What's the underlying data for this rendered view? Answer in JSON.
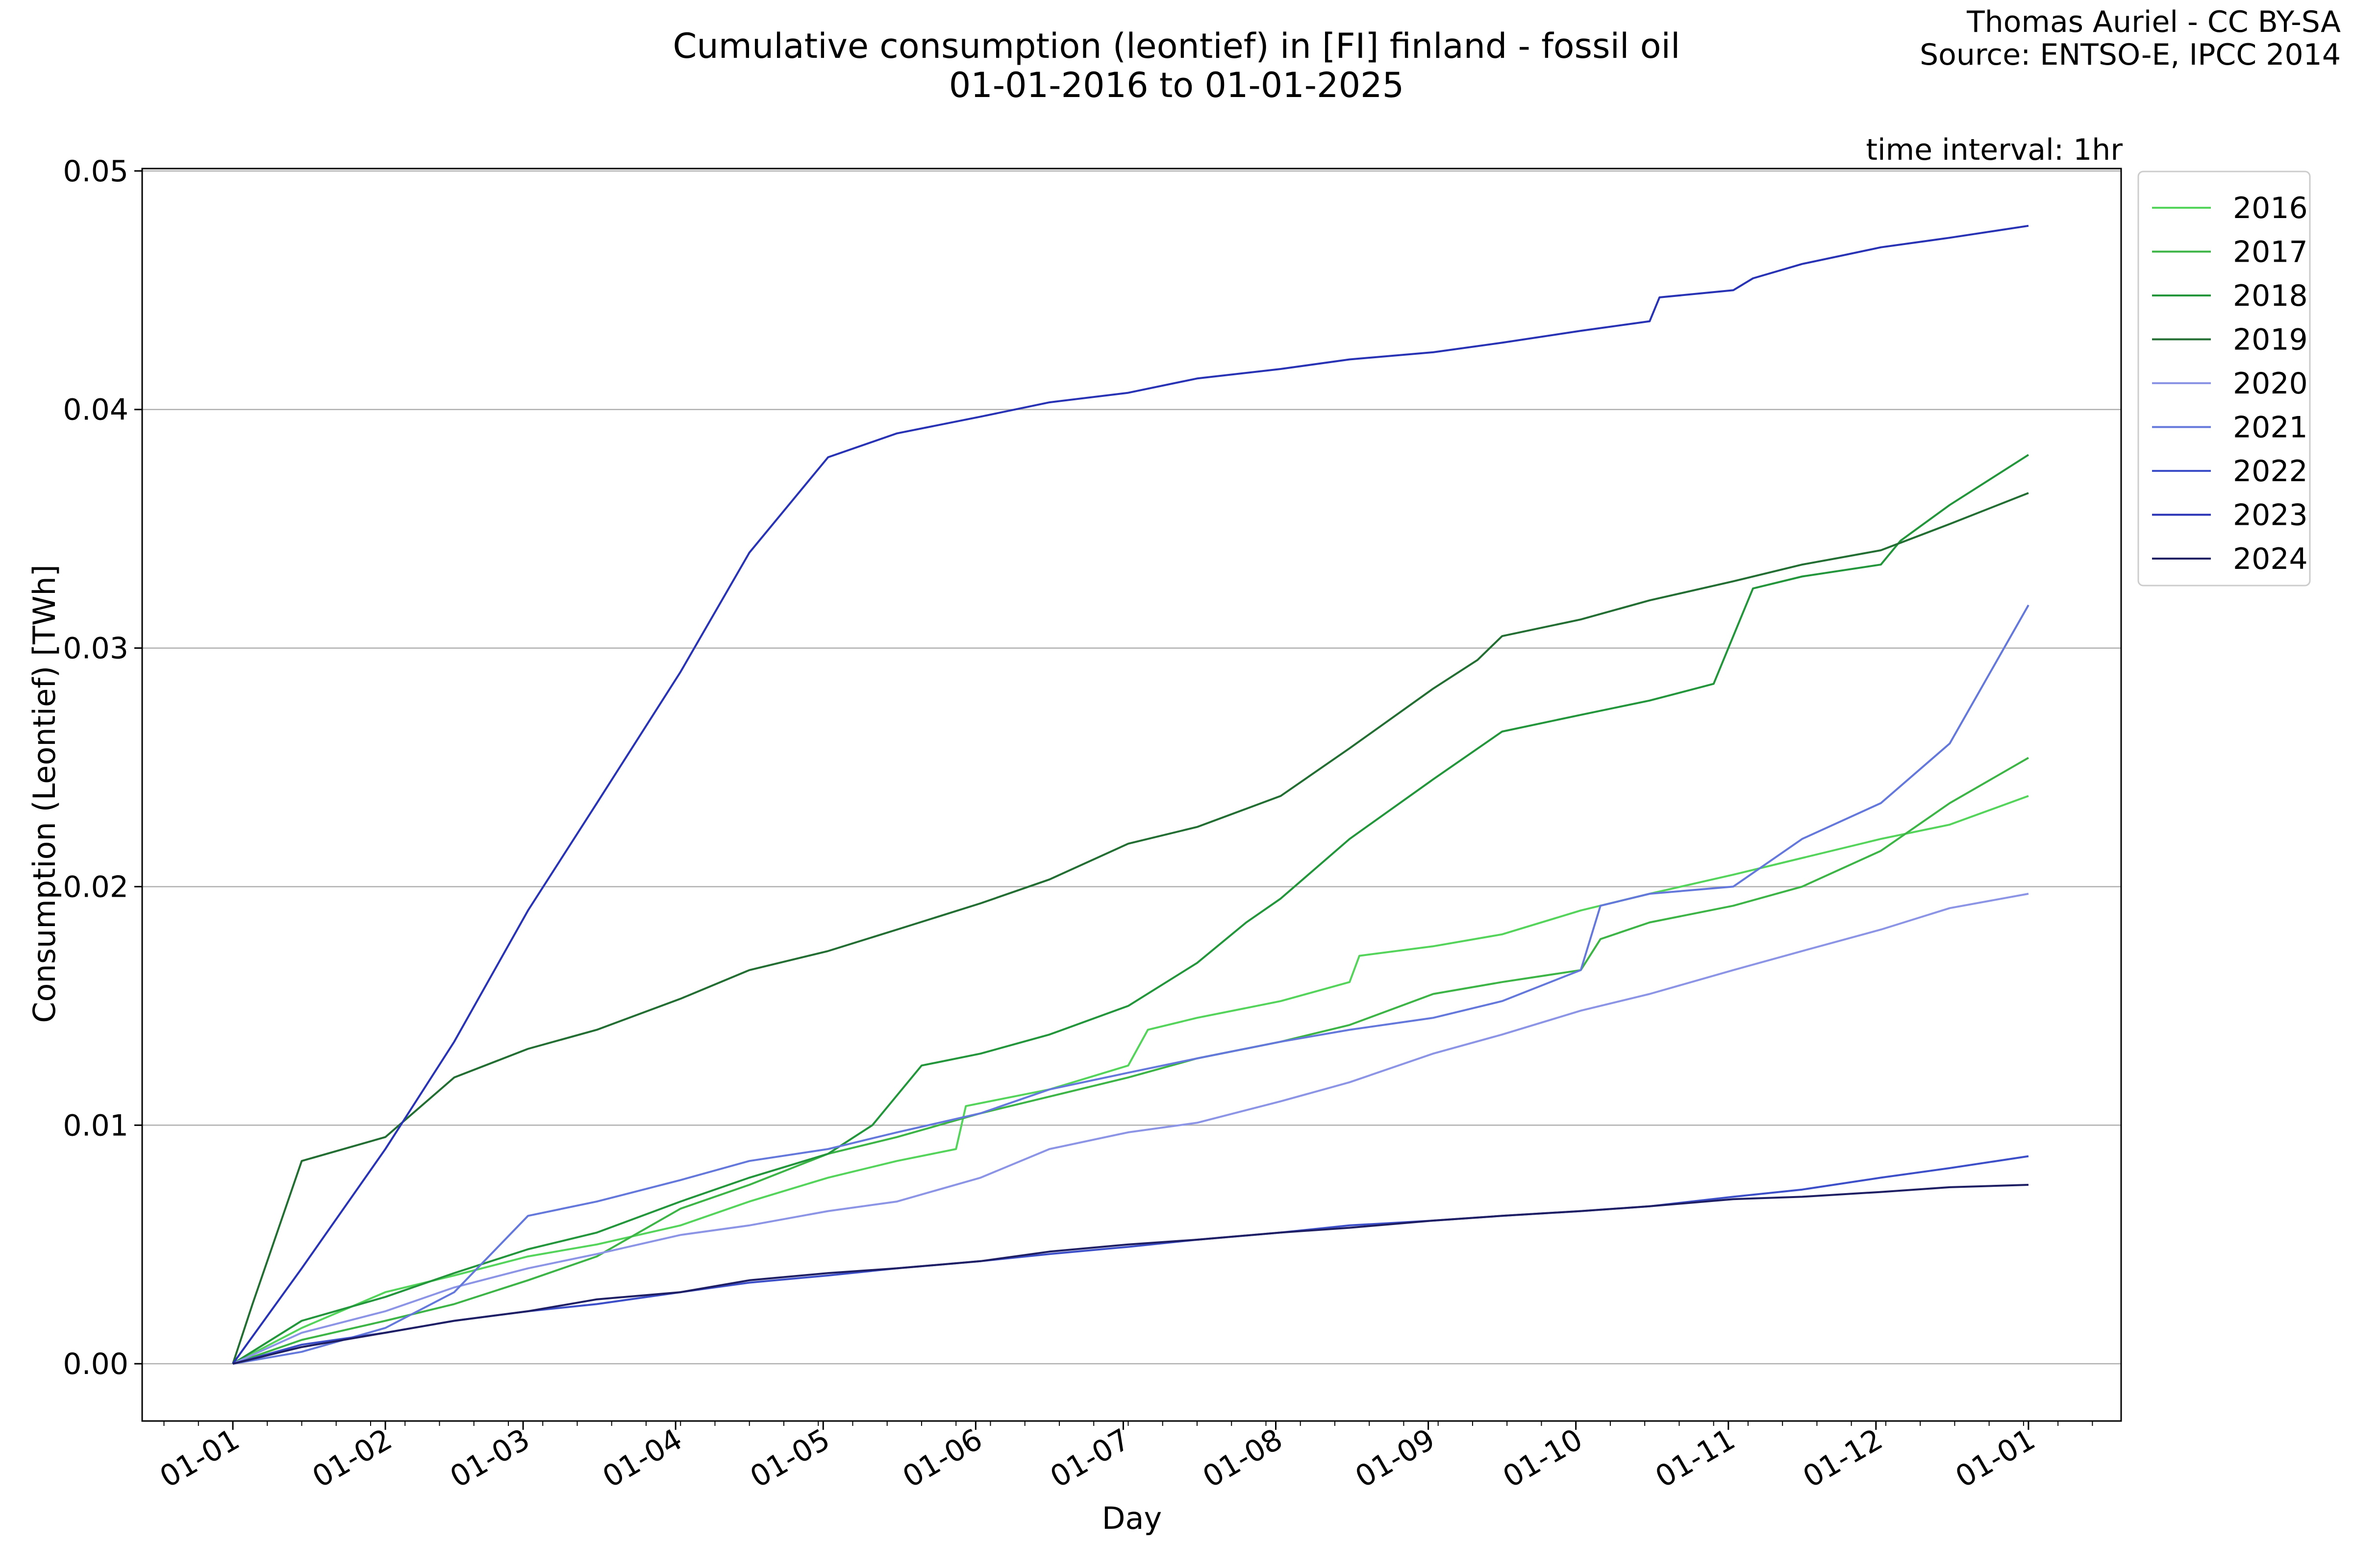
{
  "header": {
    "title_line1": "Cumulative consumption (leontief) in [FI] finland - fossil oil",
    "title_line2": "01-01-2016 to 01-01-2025",
    "credit_line1": "Thomas Auriel - CC BY-SA",
    "credit_line2": "Source: ENTSO-E, IPCC 2014",
    "time_interval": "time interval: 1hr"
  },
  "chart_data": {
    "type": "line",
    "title": "Cumulative consumption (leontief) in [FI] finland - fossil oil\n01-01-2016 to 01-01-2025",
    "xlabel": "Day",
    "ylabel": "Consumption (Leontief) [TWh]",
    "x_ticks": [
      "01-01",
      "01-02",
      "01-03",
      "01-04",
      "01-05",
      "01-06",
      "01-07",
      "01-08",
      "01-09",
      "01-10",
      "01-11",
      "01-12",
      "01-01"
    ],
    "y_ticks": [
      "0.00",
      "0.01",
      "0.02",
      "0.03",
      "0.04",
      "0.05"
    ],
    "ylim": [
      -0.0024,
      0.0501
    ],
    "grid": "horizontal",
    "legend_position": "outside-top-right",
    "series": [
      {
        "name": "2016",
        "color": "#54d45a",
        "x": [
          "01-01",
          "01-15",
          "02-01",
          "02-15",
          "03-01",
          "03-15",
          "04-01",
          "04-15",
          "05-01",
          "05-15",
          "05-27",
          "05-29",
          "06-15",
          "07-01",
          "07-05",
          "07-15",
          "08-01",
          "08-15",
          "08-17",
          "09-01",
          "09-15",
          "10-01",
          "10-15",
          "11-01",
          "11-15",
          "12-01",
          "12-15",
          "12-31"
        ],
        "y": [
          0,
          0.0015,
          0.003,
          0.0037,
          0.0045,
          0.005,
          0.0058,
          0.0068,
          0.0078,
          0.0085,
          0.009,
          0.0108,
          0.0115,
          0.0125,
          0.014,
          0.0145,
          0.0152,
          0.016,
          0.0171,
          0.0175,
          0.018,
          0.019,
          0.0197,
          0.0205,
          0.0212,
          0.022,
          0.0226,
          0.0238
        ]
      },
      {
        "name": "2017",
        "color": "#3cb446",
        "x": [
          "01-01",
          "01-15",
          "02-01",
          "02-15",
          "03-01",
          "03-15",
          "04-01",
          "04-15",
          "05-01",
          "05-15",
          "06-01",
          "06-15",
          "07-01",
          "07-15",
          "08-01",
          "08-15",
          "09-01",
          "09-15",
          "10-01",
          "10-05",
          "10-15",
          "11-01",
          "11-15",
          "12-01",
          "12-15",
          "12-31"
        ],
        "y": [
          0,
          0.001,
          0.0018,
          0.0025,
          0.0035,
          0.0045,
          0.0065,
          0.0075,
          0.0088,
          0.0095,
          0.0105,
          0.0112,
          0.012,
          0.0128,
          0.0135,
          0.0142,
          0.0155,
          0.016,
          0.0165,
          0.0178,
          0.0185,
          0.0192,
          0.02,
          0.0215,
          0.0235,
          0.0254
        ]
      },
      {
        "name": "2018",
        "color": "#23963c",
        "x": [
          "01-01",
          "01-15",
          "02-01",
          "02-15",
          "03-01",
          "03-15",
          "04-01",
          "04-15",
          "05-01",
          "05-10",
          "05-20",
          "06-01",
          "06-15",
          "07-01",
          "07-15",
          "07-25",
          "08-01",
          "08-15",
          "09-01",
          "09-15",
          "10-01",
          "10-15",
          "10-28",
          "11-01",
          "11-05",
          "11-15",
          "12-01",
          "12-05",
          "12-15",
          "12-31"
        ],
        "y": [
          0,
          0.0018,
          0.0028,
          0.0038,
          0.0048,
          0.0055,
          0.0068,
          0.0078,
          0.0088,
          0.01,
          0.0125,
          0.013,
          0.0138,
          0.015,
          0.0168,
          0.0185,
          0.0195,
          0.022,
          0.0245,
          0.0265,
          0.0272,
          0.0278,
          0.0285,
          0.0305,
          0.0325,
          0.033,
          0.0335,
          0.0345,
          0.036,
          0.0381
        ]
      },
      {
        "name": "2019",
        "color": "#236e32",
        "x": [
          "01-01",
          "01-05",
          "01-10",
          "01-15",
          "02-01",
          "02-15",
          "03-01",
          "03-15",
          "04-01",
          "04-15",
          "05-01",
          "05-15",
          "06-01",
          "06-15",
          "07-01",
          "07-15",
          "08-01",
          "08-15",
          "09-01",
          "09-10",
          "09-15",
          "10-01",
          "10-15",
          "11-01",
          "11-15",
          "12-01",
          "12-15",
          "12-31"
        ],
        "y": [
          0,
          0.0025,
          0.0055,
          0.0085,
          0.0095,
          0.012,
          0.0132,
          0.014,
          0.0153,
          0.0165,
          0.0173,
          0.0182,
          0.0193,
          0.0203,
          0.0218,
          0.0225,
          0.0238,
          0.0258,
          0.0283,
          0.0295,
          0.0305,
          0.0312,
          0.032,
          0.0328,
          0.0335,
          0.0341,
          0.0352,
          0.0365
        ]
      },
      {
        "name": "2020",
        "color": "#8c94e6",
        "x": [
          "01-01",
          "01-15",
          "02-01",
          "02-15",
          "03-01",
          "03-15",
          "04-01",
          "04-15",
          "05-01",
          "05-15",
          "06-01",
          "06-15",
          "07-01",
          "07-15",
          "08-01",
          "08-15",
          "09-01",
          "09-15",
          "10-01",
          "10-15",
          "11-01",
          "11-15",
          "12-01",
          "12-15",
          "12-31"
        ],
        "y": [
          0,
          0.0013,
          0.0022,
          0.0032,
          0.004,
          0.0046,
          0.0054,
          0.0058,
          0.0064,
          0.0068,
          0.0078,
          0.009,
          0.0097,
          0.0101,
          0.011,
          0.0118,
          0.013,
          0.0138,
          0.0148,
          0.0155,
          0.0165,
          0.0173,
          0.0182,
          0.0191,
          0.0197
        ]
      },
      {
        "name": "2021",
        "color": "#6478dc",
        "x": [
          "01-01",
          "01-15",
          "02-01",
          "02-15",
          "03-01",
          "03-15",
          "04-01",
          "04-15",
          "05-01",
          "05-15",
          "06-01",
          "06-15",
          "07-01",
          "07-15",
          "08-01",
          "08-15",
          "09-01",
          "09-15",
          "10-01",
          "10-05",
          "10-15",
          "11-01",
          "11-15",
          "12-01",
          "12-15",
          "12-31"
        ],
        "y": [
          0,
          0.0005,
          0.0015,
          0.003,
          0.0062,
          0.0068,
          0.0077,
          0.0085,
          0.009,
          0.0097,
          0.0105,
          0.0115,
          0.0122,
          0.0128,
          0.0135,
          0.014,
          0.0145,
          0.0152,
          0.0165,
          0.0192,
          0.0197,
          0.02,
          0.022,
          0.0235,
          0.026,
          0.0318
        ]
      },
      {
        "name": "2022",
        "color": "#3c4ec8",
        "x": [
          "01-01",
          "01-15",
          "02-01",
          "02-15",
          "03-01",
          "03-15",
          "04-01",
          "04-15",
          "05-01",
          "05-15",
          "06-01",
          "06-15",
          "07-01",
          "07-15",
          "08-01",
          "08-15",
          "09-01",
          "09-15",
          "10-01",
          "10-15",
          "11-01",
          "11-15",
          "12-01",
          "12-15",
          "12-31"
        ],
        "y": [
          0,
          0.0008,
          0.0013,
          0.0018,
          0.0022,
          0.0025,
          0.003,
          0.0034,
          0.0037,
          0.004,
          0.0043,
          0.0046,
          0.0049,
          0.0052,
          0.0055,
          0.0058,
          0.006,
          0.0062,
          0.0064,
          0.0066,
          0.007,
          0.0073,
          0.0078,
          0.0082,
          0.0087
        ]
      },
      {
        "name": "2023",
        "color": "#2832b4",
        "x": [
          "01-01",
          "01-15",
          "02-01",
          "02-15",
          "03-01",
          "03-15",
          "04-01",
          "04-15",
          "05-01",
          "05-15",
          "06-01",
          "06-15",
          "07-01",
          "07-15",
          "08-01",
          "08-15",
          "09-01",
          "09-15",
          "10-01",
          "10-15",
          "10-17",
          "11-01",
          "11-05",
          "11-15",
          "12-01",
          "12-15",
          "12-31"
        ],
        "y": [
          0,
          0.004,
          0.009,
          0.0135,
          0.019,
          0.0235,
          0.029,
          0.034,
          0.038,
          0.039,
          0.0397,
          0.0403,
          0.0407,
          0.0413,
          0.0417,
          0.0421,
          0.0424,
          0.0428,
          0.0433,
          0.0437,
          0.0447,
          0.045,
          0.0455,
          0.0461,
          0.0468,
          0.0472,
          0.0477
        ]
      },
      {
        "name": "2024",
        "color": "#1e1e64",
        "x": [
          "01-01",
          "01-15",
          "02-01",
          "02-15",
          "03-01",
          "03-15",
          "04-01",
          "04-15",
          "05-01",
          "05-15",
          "06-01",
          "06-15",
          "07-01",
          "07-15",
          "08-01",
          "08-15",
          "09-01",
          "09-15",
          "10-01",
          "10-15",
          "11-01",
          "11-15",
          "12-01",
          "12-15",
          "12-31"
        ],
        "y": [
          0,
          0.0007,
          0.0013,
          0.0018,
          0.0022,
          0.0027,
          0.003,
          0.0035,
          0.0038,
          0.004,
          0.0043,
          0.0047,
          0.005,
          0.0052,
          0.0055,
          0.0057,
          0.006,
          0.0062,
          0.0064,
          0.0066,
          0.0069,
          0.007,
          0.0072,
          0.0074,
          0.0075
        ]
      }
    ]
  }
}
